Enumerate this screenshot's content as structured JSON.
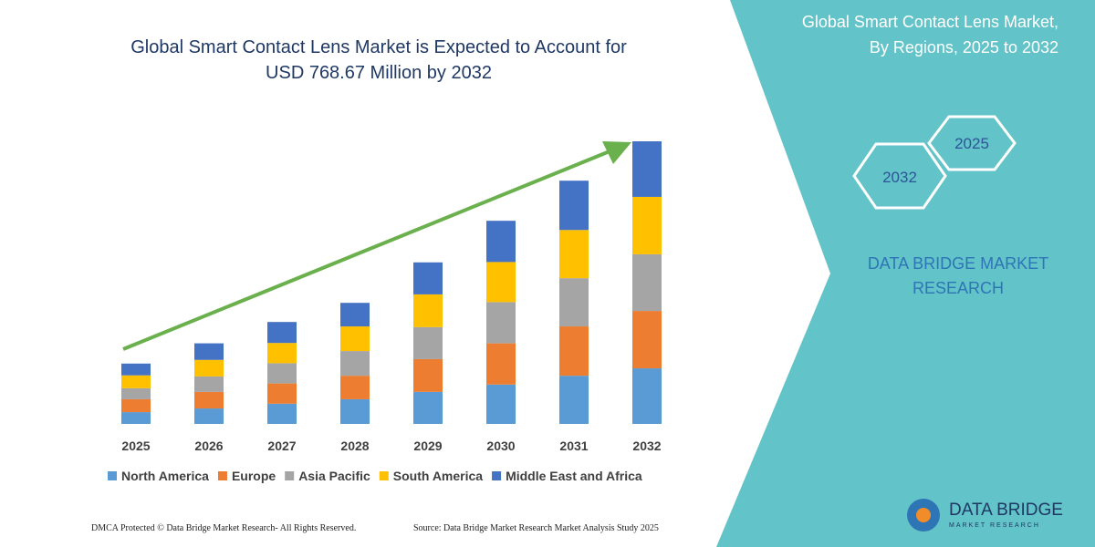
{
  "chart_data": {
    "type": "bar",
    "stacked": true,
    "title": "Global Smart Contact Lens Market is Expected to Account for USD 768.67 Million by 2032",
    "categories": [
      "2025",
      "2026",
      "2027",
      "2028",
      "2029",
      "2030",
      "2031",
      "2032"
    ],
    "series": [
      {
        "name": "North America",
        "color": "#5b9bd5",
        "values": [
          32,
          42,
          55,
          67,
          87,
          107,
          131,
          151
        ]
      },
      {
        "name": "Europe",
        "color": "#ed7d31",
        "values": [
          35,
          45,
          55,
          64,
          89,
          112,
          134,
          156
        ]
      },
      {
        "name": "Asia Pacific",
        "color": "#a5a5a5",
        "values": [
          30,
          42,
          55,
          67,
          87,
          112,
          131,
          154
        ]
      },
      {
        "name": "South America",
        "color": "#ffc000",
        "values": [
          35,
          45,
          55,
          67,
          89,
          109,
          131,
          156
        ]
      },
      {
        "name": "Middle East and Africa",
        "color": "#4472c4",
        "values": [
          32,
          45,
          57,
          64,
          87,
          112,
          134,
          151
        ]
      }
    ],
    "trend_arrow_color": "#6ab04c"
  },
  "panel": {
    "title_lines": [
      "Global Smart Contact Lens Market,",
      "By Regions, 2025 to 2032"
    ],
    "hexagons": [
      "2025",
      "2032"
    ],
    "brand_lines": [
      "DATA BRIDGE MARKET",
      "RESEARCH"
    ]
  },
  "logo": {
    "name": "DATA BRIDGE",
    "tagline": "MARKET RESEARCH"
  },
  "footer": {
    "left": "DMCA Protected © Data Bridge Market Research-  All Rights Reserved.",
    "right": "Source: Data Bridge Market Research  Market Analysis Study 2025"
  }
}
